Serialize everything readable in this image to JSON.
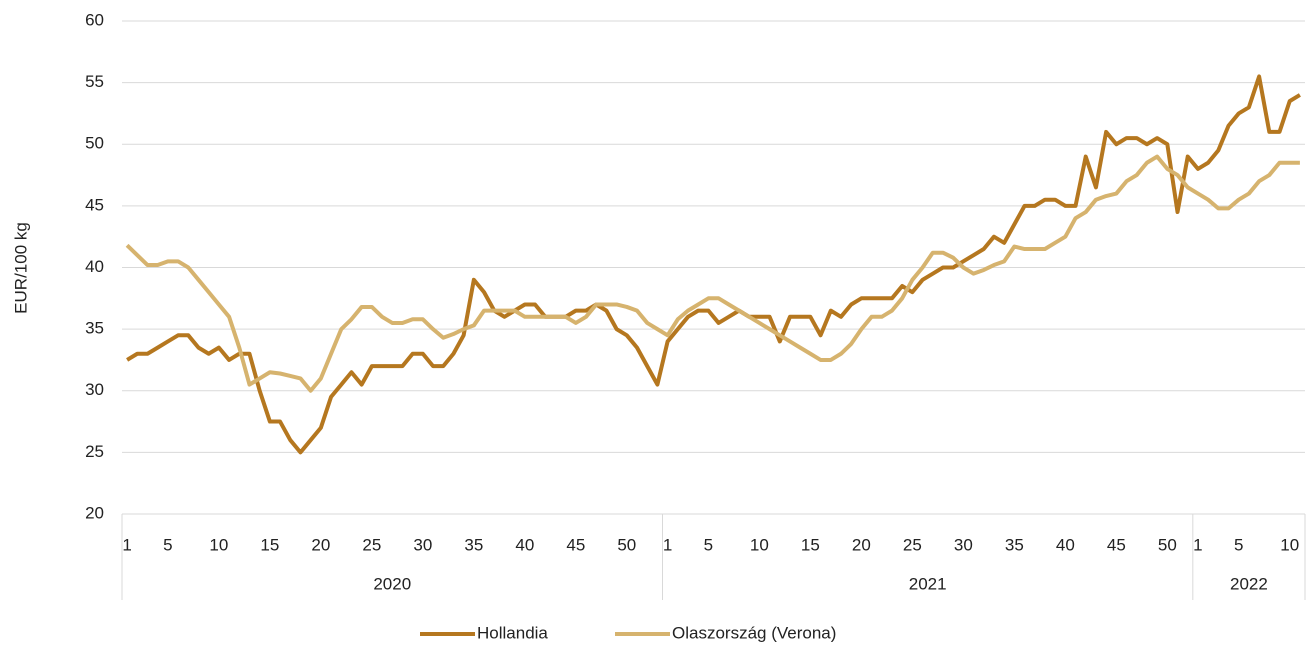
{
  "chart_data": {
    "type": "line",
    "y_label": "EUR/100 kg",
    "categories": [
      1,
      null,
      null,
      null,
      5,
      null,
      null,
      null,
      null,
      10,
      null,
      null,
      null,
      null,
      15,
      null,
      null,
      null,
      null,
      20,
      null,
      null,
      null,
      null,
      25,
      null,
      null,
      null,
      null,
      30,
      null,
      null,
      null,
      null,
      35,
      null,
      null,
      null,
      null,
      40,
      null,
      null,
      null,
      null,
      45,
      null,
      null,
      null,
      null,
      50,
      null,
      null,
      null,
      1,
      null,
      null,
      null,
      5,
      null,
      null,
      null,
      null,
      10,
      null,
      null,
      null,
      null,
      15,
      null,
      null,
      null,
      null,
      20,
      null,
      null,
      null,
      null,
      25,
      null,
      null,
      null,
      null,
      30,
      null,
      null,
      null,
      null,
      35,
      null,
      null,
      null,
      null,
      40,
      null,
      null,
      null,
      null,
      45,
      null,
      null,
      null,
      null,
      50,
      null,
      null,
      1,
      null,
      null,
      null,
      5,
      null,
      null,
      null,
      null,
      10,
      null
    ],
    "year_groups": [
      {
        "label": "2020",
        "span": 53
      },
      {
        "label": "2021",
        "span": 52
      },
      {
        "label": "2022",
        "span": 11
      }
    ],
    "series": [
      {
        "name": "Hollandia",
        "color": "#b5771f",
        "values": [
          32.5,
          33,
          33,
          33.5,
          34,
          34.5,
          34.5,
          33.5,
          33,
          33.5,
          32.5,
          33,
          33,
          30,
          27.5,
          27.5,
          26,
          25,
          26,
          27,
          29.5,
          30.5,
          31.5,
          30.5,
          32,
          32,
          32,
          32,
          33,
          33,
          32,
          32,
          33,
          34.5,
          39,
          38,
          36.5,
          36,
          36.5,
          37,
          37,
          36,
          36,
          36,
          36.5,
          36.5,
          37,
          36.5,
          35,
          34.5,
          33.5,
          32,
          30.5,
          34,
          35,
          36,
          36.5,
          36.5,
          35.5,
          36,
          36.5,
          36,
          36,
          36,
          34,
          36,
          36,
          36,
          34.5,
          36.5,
          36,
          37,
          37.5,
          37.5,
          37.5,
          37.5,
          38.5,
          38,
          39,
          39.5,
          40,
          40,
          40.5,
          41,
          41.5,
          42.5,
          42,
          43.5,
          45,
          45,
          45.5,
          45.5,
          45,
          45,
          49,
          46.5,
          51,
          50,
          50.5,
          50.5,
          50,
          50.5,
          50,
          44.5,
          49,
          48,
          48.5,
          49.5,
          51.5,
          52.5,
          53,
          55.5,
          51,
          51,
          53.5,
          54
        ]
      },
      {
        "name": "Olaszország (Verona)",
        "color": "#d6b36e",
        "values": [
          41.8,
          41,
          40.2,
          40.2,
          40.5,
          40.5,
          40,
          39,
          38,
          37,
          36,
          33.5,
          30.5,
          31,
          31.5,
          31.4,
          31.2,
          31,
          30,
          31,
          33,
          35,
          35.8,
          36.8,
          36.8,
          36,
          35.5,
          35.5,
          35.8,
          35.8,
          35,
          34.3,
          34.6,
          35,
          35.3,
          36.5,
          36.5,
          36.5,
          36.5,
          36,
          36,
          36,
          36,
          36,
          35.5,
          36,
          37,
          37,
          37,
          36.8,
          36.5,
          35.5,
          35,
          34.5,
          35.8,
          36.5,
          37,
          37.5,
          37.5,
          37,
          36.5,
          36,
          35.5,
          35,
          34.5,
          34,
          33.5,
          33,
          32.5,
          32.5,
          33,
          33.8,
          35,
          36,
          36,
          36.5,
          37.5,
          39,
          40,
          41.2,
          41.2,
          40.8,
          40,
          39.5,
          39.8,
          40.2,
          40.5,
          41.7,
          41.5,
          41.5,
          41.5,
          42,
          42.5,
          44,
          44.5,
          45.5,
          45.8,
          46,
          47,
          47.5,
          48.5,
          49,
          48,
          47.5,
          46.5,
          46,
          45.5,
          44.8,
          44.8,
          45.5,
          46,
          47,
          47.5,
          48.5,
          48.5,
          48.5
        ]
      }
    ],
    "ylim": [
      20,
      60
    ],
    "yticks": [
      20,
      25,
      30,
      35,
      40,
      45,
      50,
      55,
      60
    ],
    "grid": true
  }
}
